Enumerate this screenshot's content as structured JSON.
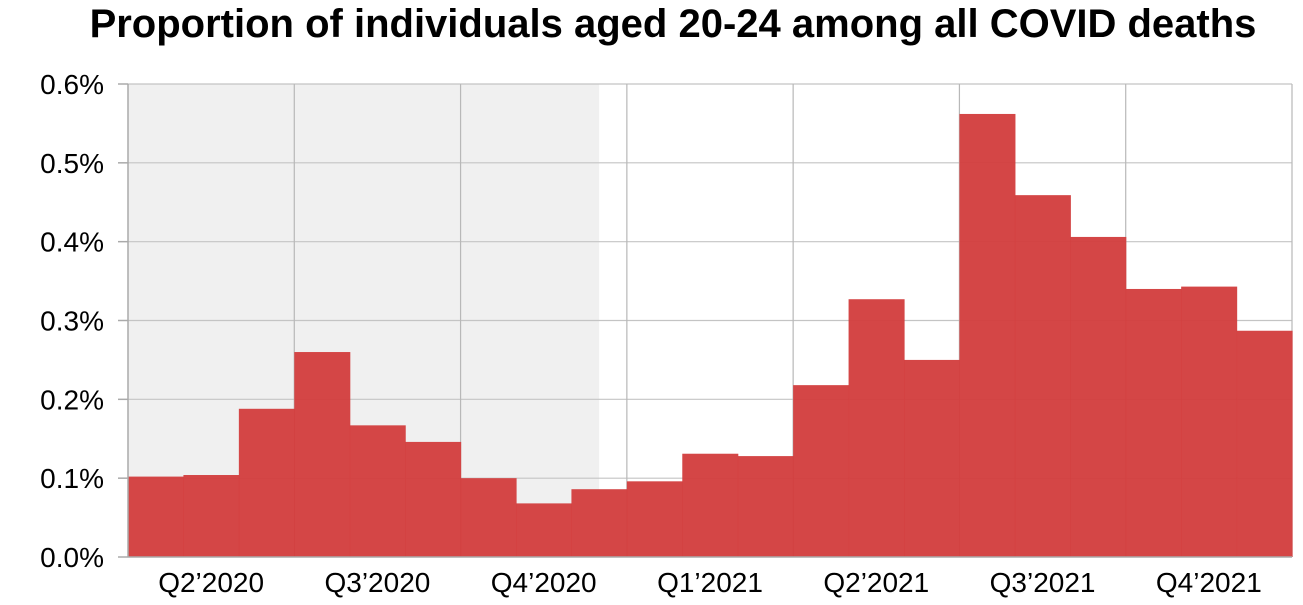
{
  "chart_data": {
    "type": "bar",
    "title": "Proportion of individuals aged 20-24 among all COVID deaths",
    "xlabel": "",
    "ylabel": "",
    "ylim": [
      0,
      0.6
    ],
    "y_ticks": [
      "0.0%",
      "0.1%",
      "0.2%",
      "0.3%",
      "0.4%",
      "0.5%",
      "0.6%"
    ],
    "x_ticks": [
      "Q2’2020",
      "Q3’2020",
      "Q4’2020",
      "Q1’2021",
      "Q2’2021",
      "Q3’2021",
      "Q4’2021"
    ],
    "unit": "%",
    "grid": true,
    "shaded_period": "Q2’2020 to Q4’2020",
    "bar_color": "#d34040",
    "shade_color": "#f0f0f0",
    "values": [
      0.102,
      0.104,
      0.188,
      0.26,
      0.167,
      0.146,
      0.1,
      0.068,
      0.086,
      0.096,
      0.131,
      0.128,
      0.218,
      0.327,
      0.25,
      0.562,
      0.459,
      0.406,
      0.34,
      0.343,
      0.287
    ]
  }
}
